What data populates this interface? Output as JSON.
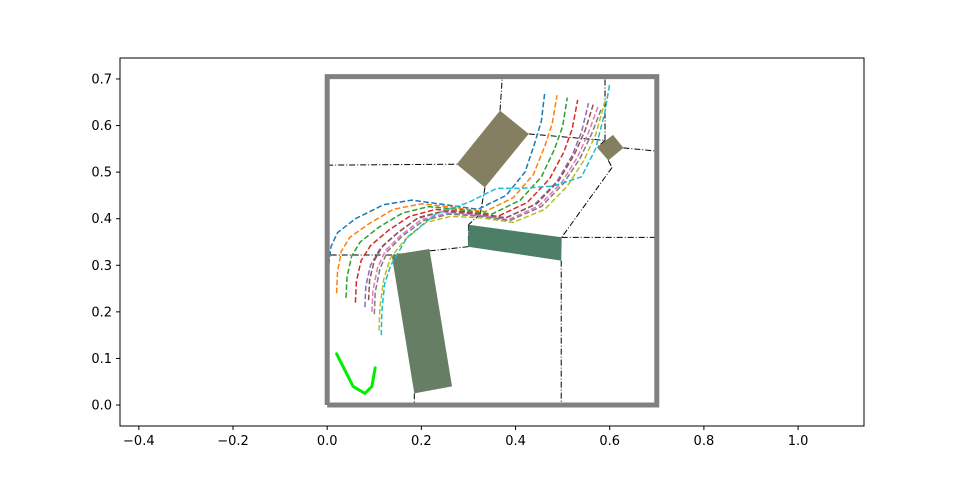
{
  "chart_data": {
    "type": "line",
    "title": "",
    "xlabel": "",
    "ylabel": "",
    "xlim": [
      -0.44,
      1.14
    ],
    "ylim": [
      -0.045,
      0.745
    ],
    "xticks": [
      -0.4,
      -0.2,
      0.0,
      0.2,
      0.4,
      0.6,
      0.8,
      1.0
    ],
    "xtick_labels": [
      "−0.4",
      "−0.2",
      "0.0",
      "0.2",
      "0.4",
      "0.6",
      "0.8",
      "1.0"
    ],
    "yticks": [
      0.0,
      0.1,
      0.2,
      0.3,
      0.4,
      0.5,
      0.6,
      0.7
    ],
    "ytick_labels": [
      "0.0",
      "0.1",
      "0.2",
      "0.3",
      "0.4",
      "0.5",
      "0.6",
      "0.7"
    ],
    "grid": false,
    "legend": "none",
    "colors": {
      "boundary": "#808080",
      "obstacle_olive": "#857f62",
      "obstacle_green": "#4d7e67",
      "obstacle_sage": "#667e63",
      "path": "#00ee00",
      "voronoi": "#000000"
    },
    "boundary": [
      [
        0.0,
        0.0
      ],
      [
        0.7,
        0.0
      ],
      [
        0.7,
        0.705
      ],
      [
        0.0,
        0.705
      ],
      [
        0.0,
        0.0
      ]
    ],
    "obstacles": [
      {
        "color": "#857f62",
        "polygon": [
          [
            0.275,
            0.517
          ],
          [
            0.367,
            0.632
          ],
          [
            0.428,
            0.582
          ],
          [
            0.335,
            0.467
          ]
        ]
      },
      {
        "color": "#857f62",
        "polygon": [
          [
            0.573,
            0.553
          ],
          [
            0.607,
            0.58
          ],
          [
            0.629,
            0.552
          ],
          [
            0.597,
            0.525
          ]
        ]
      },
      {
        "color": "#4d7e67",
        "polygon": [
          [
            0.3,
            0.387
          ],
          [
            0.299,
            0.34
          ],
          [
            0.497,
            0.31
          ],
          [
            0.498,
            0.36
          ]
        ]
      },
      {
        "color": "#667e63",
        "polygon": [
          [
            0.137,
            0.322
          ],
          [
            0.217,
            0.335
          ],
          [
            0.265,
            0.04
          ],
          [
            0.185,
            0.025
          ]
        ]
      }
    ],
    "voronoi_edges": [
      [
        [
          0.0,
          0.515
        ],
        [
          0.275,
          0.517
        ]
      ],
      [
        [
          0.367,
          0.632
        ],
        [
          0.372,
          0.705
        ]
      ],
      [
        [
          0.428,
          0.582
        ],
        [
          0.59,
          0.568
        ]
      ],
      [
        [
          0.59,
          0.568
        ],
        [
          0.59,
          0.705
        ]
      ],
      [
        [
          0.59,
          0.568
        ],
        [
          0.573,
          0.553
        ]
      ],
      [
        [
          0.629,
          0.552
        ],
        [
          0.7,
          0.545
        ]
      ],
      [
        [
          0.597,
          0.525
        ],
        [
          0.605,
          0.51
        ]
      ],
      [
        [
          0.605,
          0.51
        ],
        [
          0.498,
          0.36
        ]
      ],
      [
        [
          0.498,
          0.36
        ],
        [
          0.7,
          0.36
        ]
      ],
      [
        [
          0.497,
          0.31
        ],
        [
          0.497,
          0.0
        ]
      ],
      [
        [
          0.335,
          0.467
        ],
        [
          0.325,
          0.41
        ]
      ],
      [
        [
          0.325,
          0.41
        ],
        [
          0.3,
          0.387
        ]
      ],
      [
        [
          0.3,
          0.387
        ],
        [
          0.3,
          0.34
        ]
      ],
      [
        [
          0.3,
          0.34
        ],
        [
          0.137,
          0.322
        ]
      ],
      [
        [
          0.137,
          0.322
        ],
        [
          0.0,
          0.322
        ]
      ],
      [
        [
          0.185,
          0.025
        ],
        [
          0.185,
          0.0
        ]
      ]
    ],
    "series": [
      {
        "color": "#1f77b4",
        "x": [
          0.0,
          0.002,
          0.008,
          0.022,
          0.06,
          0.12,
          0.18,
          0.25,
          0.32,
          0.38,
          0.42,
          0.44,
          0.455,
          0.462
        ],
        "y": [
          0.25,
          0.29,
          0.34,
          0.37,
          0.4,
          0.43,
          0.44,
          0.43,
          0.42,
          0.45,
          0.5,
          0.56,
          0.61,
          0.67
        ]
      },
      {
        "color": "#ff7f0e",
        "x": [
          0.02,
          0.022,
          0.03,
          0.048,
          0.09,
          0.14,
          0.2,
          0.265,
          0.335,
          0.395,
          0.438,
          0.462,
          0.478,
          0.488
        ],
        "y": [
          0.24,
          0.285,
          0.33,
          0.36,
          0.39,
          0.42,
          0.432,
          0.425,
          0.415,
          0.445,
          0.495,
          0.555,
          0.605,
          0.665
        ]
      },
      {
        "color": "#2ca02c",
        "x": [
          0.04,
          0.042,
          0.052,
          0.07,
          0.11,
          0.16,
          0.215,
          0.28,
          0.35,
          0.41,
          0.455,
          0.482,
          0.5,
          0.51
        ],
        "y": [
          0.23,
          0.275,
          0.32,
          0.35,
          0.382,
          0.412,
          0.426,
          0.42,
          0.41,
          0.44,
          0.49,
          0.548,
          0.598,
          0.66
        ]
      },
      {
        "color": "#d62728",
        "x": [
          0.06,
          0.062,
          0.072,
          0.092,
          0.13,
          0.175,
          0.23,
          0.292,
          0.362,
          0.425,
          0.472,
          0.502,
          0.52,
          0.532
        ],
        "y": [
          0.22,
          0.265,
          0.31,
          0.342,
          0.375,
          0.405,
          0.42,
          0.415,
          0.405,
          0.435,
          0.485,
          0.542,
          0.592,
          0.655
        ]
      },
      {
        "color": "#9467bd",
        "x": [
          0.08,
          0.082,
          0.092,
          0.112,
          0.148,
          0.19,
          0.245,
          0.305,
          0.375,
          0.44,
          0.488,
          0.52,
          0.54,
          0.555
        ],
        "y": [
          0.21,
          0.255,
          0.3,
          0.335,
          0.368,
          0.4,
          0.415,
          0.41,
          0.4,
          0.43,
          0.48,
          0.536,
          0.586,
          0.648
        ]
      },
      {
        "color": "#8c564b",
        "x": [
          0.088,
          0.09,
          0.1,
          0.118,
          0.152,
          0.195,
          0.25,
          0.31,
          0.38,
          0.445,
          0.492,
          0.525,
          0.548,
          0.565
        ],
        "y": [
          0.225,
          0.268,
          0.31,
          0.342,
          0.372,
          0.403,
          0.417,
          0.412,
          0.402,
          0.432,
          0.482,
          0.538,
          0.59,
          0.645
        ]
      },
      {
        "color": "#e377c2",
        "x": [
          0.095,
          0.097,
          0.107,
          0.124,
          0.157,
          0.2,
          0.255,
          0.315,
          0.385,
          0.45,
          0.498,
          0.532,
          0.555,
          0.575
        ],
        "y": [
          0.2,
          0.245,
          0.295,
          0.332,
          0.365,
          0.398,
          0.412,
          0.408,
          0.398,
          0.428,
          0.478,
          0.533,
          0.585,
          0.64
        ]
      },
      {
        "color": "#7f7f7f",
        "x": [
          0.1,
          0.102,
          0.112,
          0.128,
          0.16,
          0.205,
          0.258,
          0.318,
          0.388,
          0.455,
          0.502,
          0.537,
          0.562,
          0.583
        ],
        "y": [
          0.195,
          0.242,
          0.292,
          0.33,
          0.363,
          0.396,
          0.41,
          0.406,
          0.396,
          0.426,
          0.476,
          0.53,
          0.583,
          0.638
        ]
      },
      {
        "color": "#bcbd22",
        "x": [
          0.11,
          0.112,
          0.12,
          0.134,
          0.165,
          0.21,
          0.262,
          0.325,
          0.395,
          0.462,
          0.51,
          0.545,
          0.57,
          0.592
        ],
        "y": [
          0.16,
          0.21,
          0.27,
          0.315,
          0.355,
          0.392,
          0.405,
          0.402,
          0.392,
          0.42,
          0.47,
          0.525,
          0.58,
          0.66
        ]
      },
      {
        "color": "#17becf",
        "x": [
          0.115,
          0.116,
          0.122,
          0.135,
          0.17,
          0.23,
          0.3,
          0.36,
          0.41,
          0.48,
          0.54,
          0.57,
          0.59,
          0.6
        ],
        "y": [
          0.15,
          0.2,
          0.26,
          0.3,
          0.36,
          0.41,
          0.435,
          0.465,
          0.465,
          0.47,
          0.49,
          0.55,
          0.63,
          0.69
        ]
      }
    ],
    "path": {
      "color": "#00ee00",
      "x": [
        0.02,
        0.035,
        0.055,
        0.08,
        0.095,
        0.102
      ],
      "y": [
        0.11,
        0.08,
        0.04,
        0.025,
        0.04,
        0.08
      ]
    }
  }
}
